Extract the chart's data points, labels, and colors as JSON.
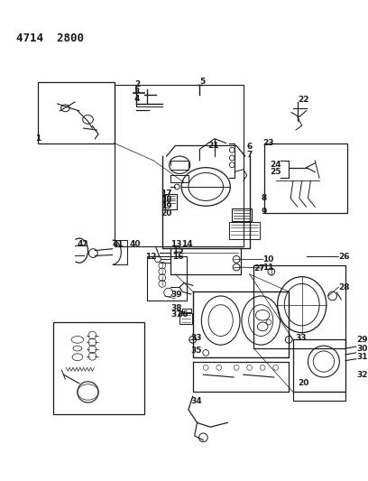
{
  "title": "4714  2800",
  "bg_color": "#ffffff",
  "line_color": "#1a1a1a",
  "fig_width": 4.08,
  "fig_height": 5.33,
  "dpi": 100
}
